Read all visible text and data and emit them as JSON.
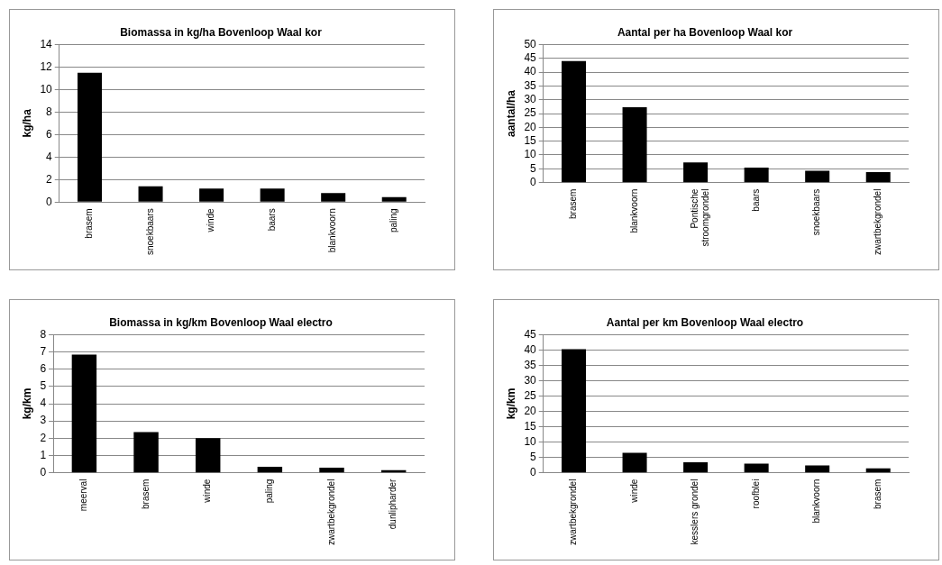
{
  "chart_data": [
    {
      "type": "bar",
      "title": "Biomassa in kg/ha Bovenloop Waal kor",
      "ylabel": "kg/ha",
      "categories": [
        "brasem",
        "snoekbaars",
        "winde",
        "baars",
        "blankvoorn",
        "paling"
      ],
      "values": [
        11.5,
        1.4,
        1.2,
        1.2,
        0.8,
        0.45
      ],
      "color": "#000000",
      "ylim": [
        0,
        14
      ],
      "yticks": [
        0,
        2,
        4,
        6,
        8,
        10,
        12,
        14
      ],
      "grid": "y"
    },
    {
      "type": "bar",
      "title": "Aantal per ha Bovenloop Waal kor",
      "ylabel": "aantal/ha",
      "categories": [
        "brasem",
        "blankvoorn",
        "Pontische stroomgrondel",
        "baars",
        "snoekbaars",
        "zwartbekgrondel"
      ],
      "values": [
        44,
        27.3,
        7.3,
        5.4,
        4.3,
        3.8
      ],
      "color": "#000000",
      "ylim": [
        0,
        50
      ],
      "yticks": [
        0,
        5,
        10,
        15,
        20,
        25,
        30,
        35,
        40,
        45,
        50
      ],
      "grid": "y"
    },
    {
      "type": "bar",
      "title": "Biomassa in kg/km Bovenloop Waal electro",
      "ylabel": "kg/km",
      "categories": [
        "meerval",
        "brasem",
        "winde",
        "paling",
        "zwartbekgrondel",
        "dunlipharder"
      ],
      "values": [
        6.85,
        2.35,
        2.0,
        0.35,
        0.3,
        0.15
      ],
      "color": "#000000",
      "ylim": [
        0,
        8
      ],
      "yticks": [
        0,
        1,
        2,
        3,
        4,
        5,
        6,
        7,
        8
      ],
      "grid": "y"
    },
    {
      "type": "bar",
      "title": "Aantal per km Bovenloop Waal electro",
      "ylabel": "kg/km",
      "categories": [
        "zwartbekgrondel",
        "winde",
        "kesslers grondel",
        "roofblei",
        "blankvoorn",
        "brasem"
      ],
      "values": [
        40.3,
        6.5,
        3.4,
        3.0,
        2.4,
        1.4
      ],
      "color": "#000000",
      "ylim": [
        0,
        45
      ],
      "yticks": [
        0,
        5,
        10,
        15,
        20,
        25,
        30,
        35,
        40,
        45
      ],
      "grid": "y"
    }
  ]
}
